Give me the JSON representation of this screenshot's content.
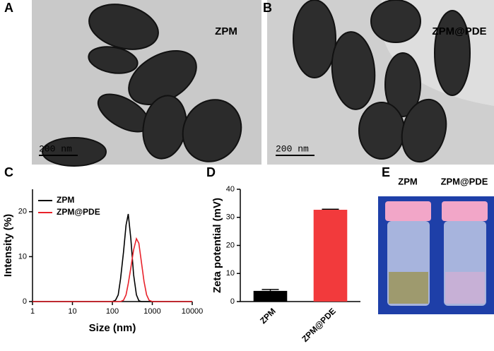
{
  "panels": {
    "a": {
      "label": "A",
      "title": "ZPM",
      "scale_bar": "200 nm"
    },
    "b": {
      "label": "B",
      "title": "ZPM@PDE",
      "scale_bar": "200 nm"
    },
    "e": {
      "label": "E",
      "vials": [
        "ZPM",
        "ZPM@PDE"
      ]
    }
  },
  "chart_data": [
    {
      "type": "line",
      "label": "C",
      "x_label": "Size (nm)",
      "y_label": "Intensity (%)",
      "xscale": "log",
      "x": [
        1,
        100,
        120,
        140,
        160,
        190,
        220,
        250,
        290,
        340,
        400,
        460,
        530,
        620,
        720,
        830,
        1000,
        10000
      ],
      "series": [
        {
          "name": "ZPM",
          "color": "#000000",
          "values": [
            0,
            0,
            0.3,
            1.5,
            5,
            11,
            17,
            19.5,
            14,
            6,
            1.5,
            0.2,
            0,
            0,
            0,
            0,
            0,
            0
          ]
        },
        {
          "name": "ZPM@PDE",
          "color": "#e8222b",
          "values": [
            0,
            0,
            0,
            0,
            0,
            0.3,
            1.5,
            4,
            7.5,
            11.5,
            14,
            13,
            9,
            4.5,
            1.5,
            0.3,
            0,
            0
          ]
        }
      ],
      "xlim": [
        1,
        10000
      ],
      "xticks": [
        1,
        10,
        100,
        1000,
        10000
      ],
      "ylim": [
        0,
        25
      ],
      "yticks": [
        0,
        10,
        20
      ],
      "legend": "upper-left"
    },
    {
      "type": "bar",
      "label": "D",
      "y_label": "Zeta potential (mV)",
      "categories": [
        "ZPM",
        "ZPM@PDE"
      ],
      "values": [
        3.8,
        32.7
      ],
      "errors": [
        0.5,
        0.2
      ],
      "colors": [
        "#000000",
        "#f23a3c"
      ],
      "ylim": [
        0,
        40
      ],
      "yticks": [
        0,
        10,
        20,
        30,
        40
      ]
    }
  ]
}
